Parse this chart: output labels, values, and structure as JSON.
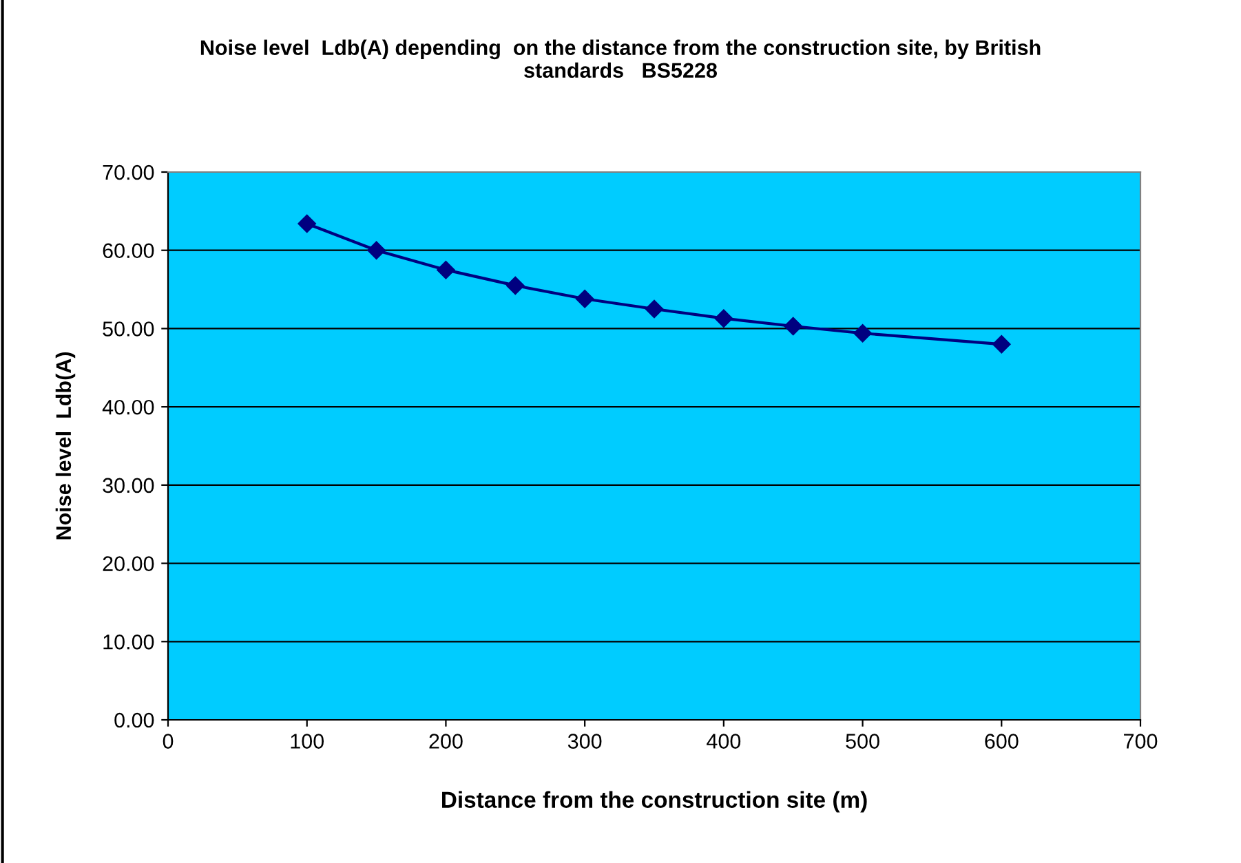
{
  "chart_data": {
    "type": "line",
    "title": "Noise level  Ldb(A) depending  on the distance from the construction site, by British\nstandards   BS5228",
    "xlabel": "Distance from the construction site (m)",
    "ylabel": "Noise level  Ldb(A)",
    "x": [
      100,
      150,
      200,
      250,
      300,
      350,
      400,
      450,
      500,
      600
    ],
    "series": [
      {
        "color": "#000080",
        "values": [
          63.4,
          60.0,
          57.5,
          55.5,
          53.8,
          52.5,
          51.3,
          50.3,
          49.4,
          48.0
        ]
      }
    ],
    "xlim": [
      0,
      700
    ],
    "xticks": [
      0,
      100,
      200,
      300,
      400,
      500,
      600,
      700
    ],
    "ylim": [
      0,
      70
    ],
    "yticks": [
      {
        "value": 0,
        "label": "0.00"
      },
      {
        "value": 10,
        "label": "10.00"
      },
      {
        "value": 20,
        "label": "20.00"
      },
      {
        "value": 30,
        "label": "30.00"
      },
      {
        "value": 40,
        "label": "40.00"
      },
      {
        "value": 50,
        "label": "50.00"
      },
      {
        "value": 60,
        "label": "60.00"
      },
      {
        "value": 70,
        "label": "70.00"
      }
    ],
    "grid": "y",
    "marker": "diamond",
    "line_style": "solid",
    "legend": false
  }
}
